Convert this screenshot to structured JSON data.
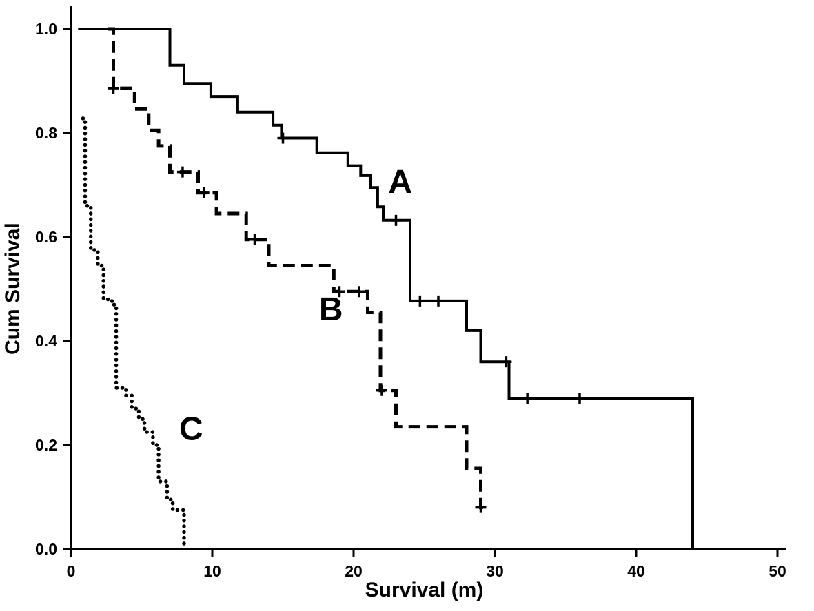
{
  "figure": {
    "background": "#ffffff",
    "ink_color": "#000000"
  },
  "chart_data": {
    "type": "line",
    "subtype": "kaplan-meier-step-survival",
    "title": "",
    "xlabel": "Survival (m)",
    "ylabel": "Cum Survival",
    "color": "#000000",
    "grid": false,
    "legend": "inline-curve-labels",
    "xlim": [
      0,
      50
    ],
    "ylim": [
      0,
      1.0
    ],
    "x_ticks": [
      0,
      10,
      20,
      30,
      40,
      50
    ],
    "x_tick_labels": [
      "0",
      "10",
      "20",
      "30",
      "40",
      "50"
    ],
    "y_ticks": [
      0.0,
      0.2,
      0.4,
      0.6,
      0.8,
      1.0
    ],
    "y_tick_labels": [
      "0.0",
      "0.2",
      "0.4",
      "0.6",
      "0.8",
      "1.0"
    ],
    "series": [
      {
        "name": "C",
        "line_style": "dotted",
        "label_pos": {
          "x": 8.5,
          "y": 0.21
        },
        "points": [
          [
            0.85,
            0.828
          ],
          [
            1.0,
            0.66
          ],
          [
            1.4,
            0.575
          ],
          [
            1.9,
            0.545
          ],
          [
            2.3,
            0.48
          ],
          [
            2.9,
            0.47
          ],
          [
            3.2,
            0.31
          ],
          [
            3.9,
            0.295
          ],
          [
            4.3,
            0.27
          ],
          [
            4.8,
            0.25
          ],
          [
            5.2,
            0.225
          ],
          [
            5.8,
            0.2
          ],
          [
            6.2,
            0.13
          ],
          [
            6.8,
            0.095
          ],
          [
            7.2,
            0.075
          ],
          [
            8.0,
            0.0
          ]
        ],
        "censor_marks": []
      },
      {
        "name": "B",
        "line_style": "dashed",
        "label_pos": {
          "x": 18.4,
          "y": 0.44
        },
        "points": [
          [
            2.6,
            1.0
          ],
          [
            3.0,
            0.886
          ],
          [
            4.5,
            0.846
          ],
          [
            5.5,
            0.805
          ],
          [
            6.2,
            0.775
          ],
          [
            7.0,
            0.725
          ],
          [
            9.0,
            0.685
          ],
          [
            10.3,
            0.645
          ],
          [
            12.4,
            0.595
          ],
          [
            14.0,
            0.545
          ],
          [
            18.6,
            0.495
          ],
          [
            21.0,
            0.455
          ],
          [
            21.9,
            0.305
          ],
          [
            23.0,
            0.235
          ],
          [
            28.0,
            0.155
          ],
          [
            29.0,
            0.08
          ],
          [
            29.6,
            0.08
          ]
        ],
        "censor_marks": [
          [
            3.0,
            0.886
          ],
          [
            7.9,
            0.725
          ],
          [
            9.4,
            0.685
          ],
          [
            13.0,
            0.595
          ],
          [
            19.0,
            0.495
          ],
          [
            20.4,
            0.495
          ],
          [
            22.0,
            0.305
          ],
          [
            29.0,
            0.08
          ]
        ]
      },
      {
        "name": "A",
        "line_style": "solid",
        "label_pos": {
          "x": 23.3,
          "y": 0.685
        },
        "points": [
          [
            0.5,
            1.0
          ],
          [
            7.0,
            0.93
          ],
          [
            8.0,
            0.895
          ],
          [
            9.9,
            0.87
          ],
          [
            11.8,
            0.84
          ],
          [
            14.3,
            0.815
          ],
          [
            14.9,
            0.79
          ],
          [
            17.4,
            0.762
          ],
          [
            19.6,
            0.737
          ],
          [
            20.5,
            0.718
          ],
          [
            21.2,
            0.695
          ],
          [
            21.7,
            0.658
          ],
          [
            22.1,
            0.632
          ],
          [
            24.0,
            0.477
          ],
          [
            28.0,
            0.42
          ],
          [
            29.0,
            0.36
          ],
          [
            31.0,
            0.29
          ],
          [
            44.0,
            0.0
          ]
        ],
        "censor_marks": [
          [
            15.0,
            0.79
          ],
          [
            23.0,
            0.632
          ],
          [
            24.7,
            0.477
          ],
          [
            26.0,
            0.477
          ],
          [
            30.8,
            0.36
          ],
          [
            32.3,
            0.29
          ],
          [
            36.0,
            0.29
          ]
        ]
      }
    ]
  }
}
